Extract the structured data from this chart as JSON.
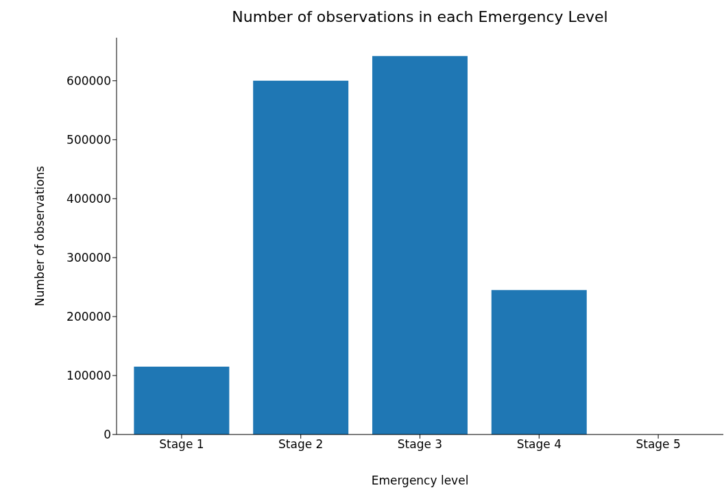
{
  "chart_data": {
    "type": "bar",
    "title": "Number of observations in each Emergency Level",
    "xlabel": "Emergency level",
    "ylabel": "Number of observations",
    "categories": [
      "Stage 1",
      "Stage 2",
      "Stage 3",
      "Stage 4",
      "Stage 5"
    ],
    "values": [
      115000,
      600000,
      642000,
      245000,
      0
    ],
    "color": "#1f77b4",
    "ylim": [
      0,
      673000
    ],
    "yticks": [
      0,
      100000,
      200000,
      300000,
      400000,
      500000,
      600000
    ],
    "grid": false
  }
}
